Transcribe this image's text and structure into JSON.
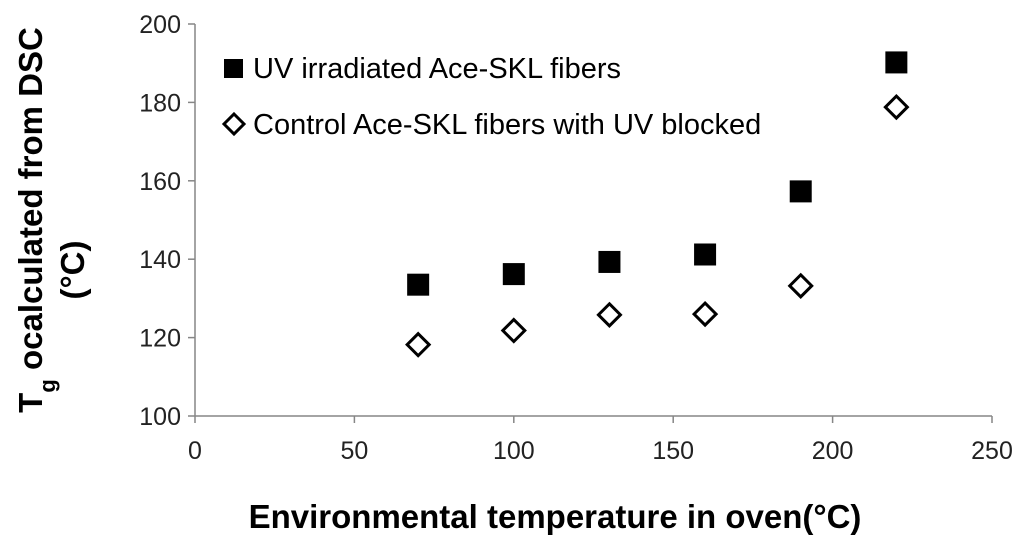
{
  "chart_data": {
    "type": "scatter",
    "title": "",
    "xlabel": "Environmental temperature in oven(°C)",
    "ylabel": {
      "main": "T",
      "subscript": "g",
      "rest": " ocalculated from DSC",
      "line2": "(°C)"
    },
    "xlim": [
      0,
      250
    ],
    "ylim": [
      100,
      200
    ],
    "xticks": [
      "0",
      "50",
      "100",
      "150",
      "200",
      "250"
    ],
    "yticks": [
      "100",
      "120",
      "140",
      "160",
      "180",
      "200"
    ],
    "grid": false,
    "legend_position": "top-left",
    "series": [
      {
        "name": "UV irradiated Ace-SKL fibers",
        "marker": "filled-square",
        "color": "#000000",
        "points": [
          {
            "x": 70,
            "y": 133.5
          },
          {
            "x": 100,
            "y": 136.2
          },
          {
            "x": 130,
            "y": 139.3
          },
          {
            "x": 160,
            "y": 141.2
          },
          {
            "x": 190,
            "y": 157.3
          },
          {
            "x": 220,
            "y": 190.2
          }
        ]
      },
      {
        "name": "Control Ace-SKL fibers with UV blocked",
        "marker": "hollow-diamond",
        "color": "#000000",
        "points": [
          {
            "x": 70,
            "y": 118.2
          },
          {
            "x": 100,
            "y": 121.8
          },
          {
            "x": 130,
            "y": 125.8
          },
          {
            "x": 160,
            "y": 126.0
          },
          {
            "x": 190,
            "y": 133.2
          },
          {
            "x": 220,
            "y": 178.8
          }
        ]
      }
    ]
  }
}
